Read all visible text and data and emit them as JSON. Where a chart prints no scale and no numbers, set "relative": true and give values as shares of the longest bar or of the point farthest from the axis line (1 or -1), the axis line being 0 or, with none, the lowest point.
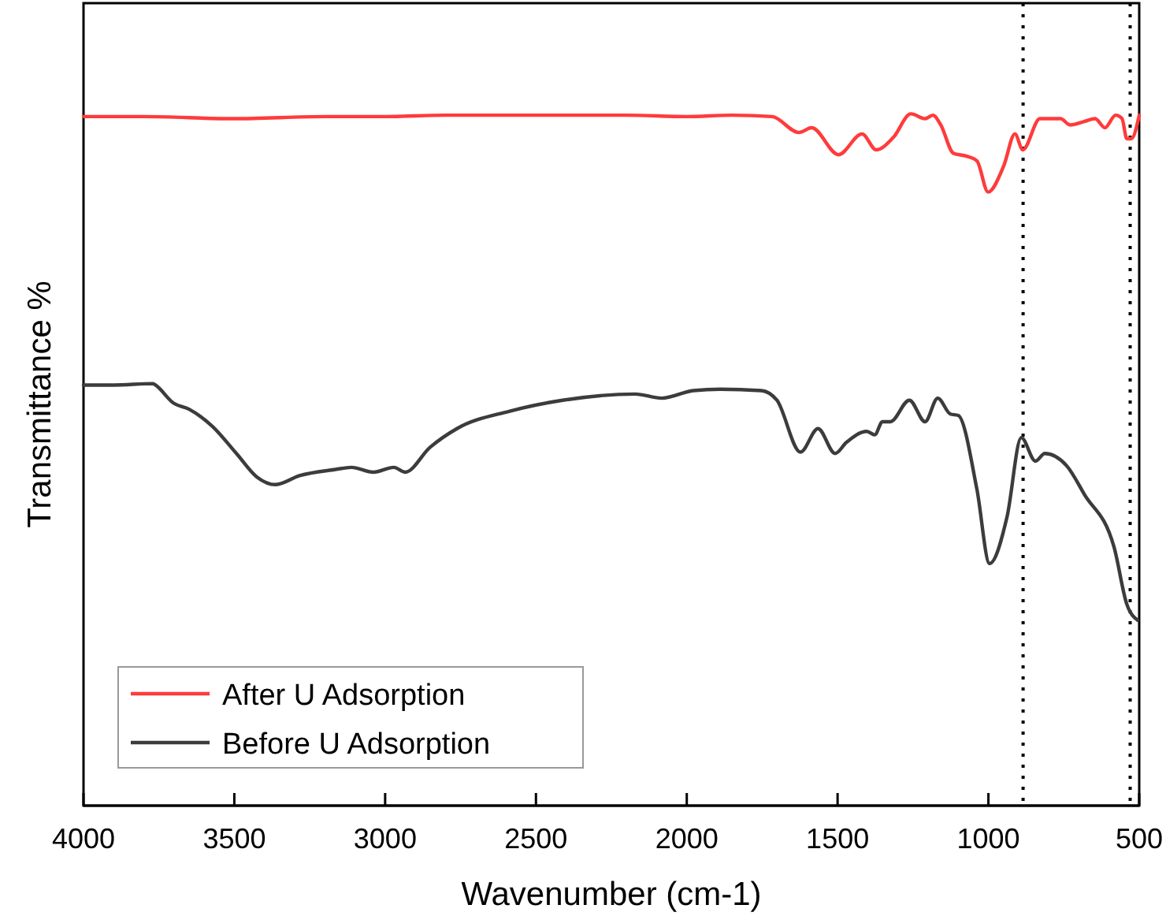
{
  "chart_data": {
    "type": "line",
    "relative": true,
    "xlabel": "Wavenumber (cm-1)",
    "ylabel": "Transmittance %",
    "xlim": [
      4000,
      500
    ],
    "xticks": [
      4000,
      3500,
      3000,
      2500,
      2000,
      1500,
      1000,
      500
    ],
    "legend": "bottom left",
    "line_style": "solid",
    "marker": "none",
    "series": [
      {
        "name": "After U Adsorption",
        "color": "#ff3b3b",
        "x": [
          4000,
          3800,
          3500,
          3200,
          3000,
          2800,
          2500,
          2200,
          2000,
          1850,
          1717,
          1628,
          1586,
          1497,
          1419,
          1372,
          1315,
          1257,
          1210,
          1184,
          1158,
          1116,
          1074,
          1038,
          1001,
          949,
          912,
          886,
          829,
          761,
          729,
          682,
          646,
          614,
          578,
          557,
          541,
          526,
          500
        ],
        "values": [
          0.996,
          0.996,
          0.993,
          0.996,
          0.996,
          0.998,
          0.998,
          0.998,
          0.996,
          0.998,
          0.996,
          0.973,
          0.98,
          0.941,
          0.971,
          0.948,
          0.966,
          1.0,
          0.993,
          0.998,
          0.984,
          0.943,
          0.939,
          0.932,
          0.887,
          0.925,
          0.971,
          0.948,
          0.993,
          0.993,
          0.984,
          0.989,
          0.993,
          0.98,
          0.998,
          0.993,
          0.964,
          0.964,
          0.998
        ]
      },
      {
        "name": "Before U Adsorption",
        "color": "#3c3c3c",
        "x": [
          4000,
          3900,
          3770,
          3765,
          3702,
          3650,
          3572,
          3493,
          3425,
          3363,
          3284,
          3164,
          3112,
          3039,
          2971,
          2934,
          2851,
          2762,
          2589,
          2412,
          2171,
          2083,
          1978,
          1889,
          1753,
          1701,
          1623,
          1565,
          1508,
          1471,
          1403,
          1377,
          1351,
          1325,
          1262,
          1210,
          1168,
          1126,
          1100,
          1038,
          996,
          938,
          891,
          844,
          813,
          740,
          682,
          583,
          541,
          505
        ],
        "values": [
          0.608,
          0.608,
          0.61,
          0.609,
          0.582,
          0.573,
          0.548,
          0.509,
          0.475,
          0.464,
          0.477,
          0.486,
          0.489,
          0.482,
          0.489,
          0.482,
          0.518,
          0.545,
          0.57,
          0.586,
          0.595,
          0.589,
          0.6,
          0.602,
          0.6,
          0.586,
          0.511,
          0.545,
          0.509,
          0.525,
          0.541,
          0.536,
          0.555,
          0.555,
          0.586,
          0.555,
          0.589,
          0.566,
          0.564,
          0.457,
          0.35,
          0.418,
          0.532,
          0.498,
          0.509,
          0.491,
          0.45,
          0.373,
          0.291,
          0.268
        ]
      }
    ],
    "ref_lines": [
      {
        "axis": "x",
        "value": 885,
        "color": "#000000",
        "line_style": "dotted"
      },
      {
        "axis": "x",
        "value": 530,
        "color": "#000000",
        "line_style": "dotted"
      }
    ]
  }
}
